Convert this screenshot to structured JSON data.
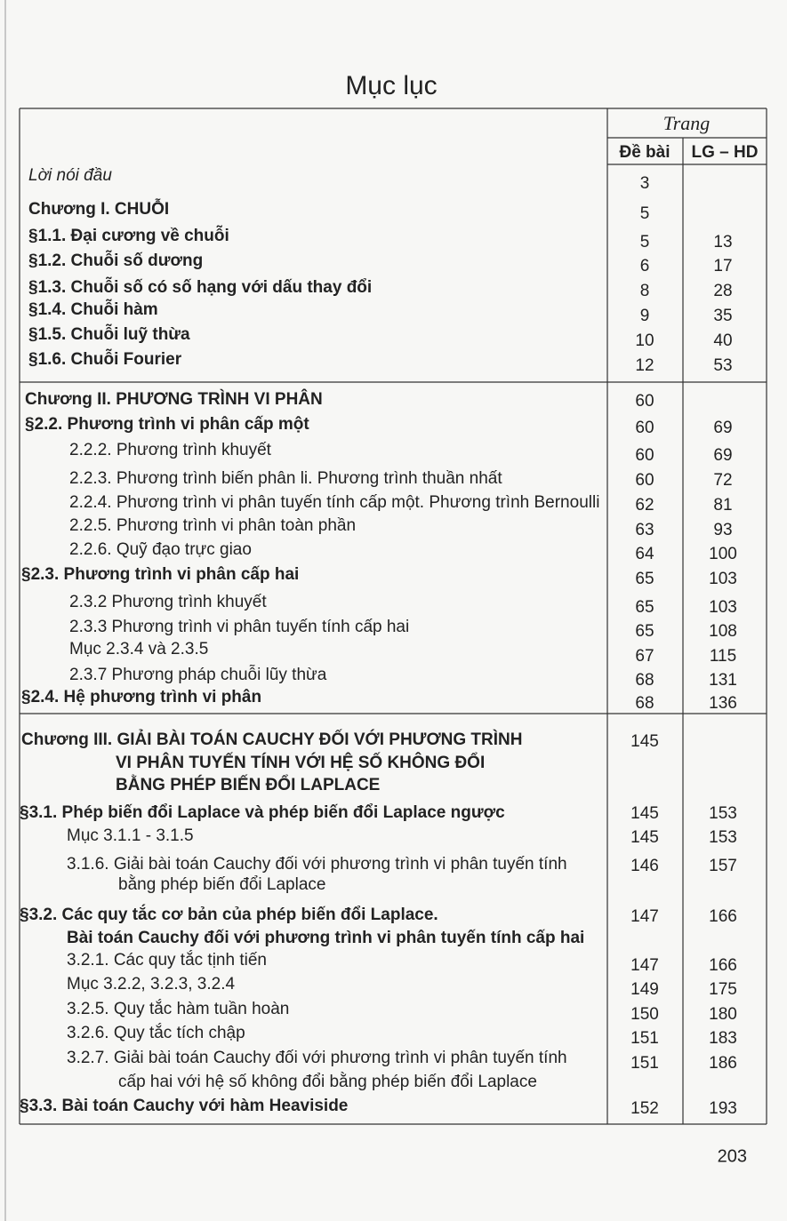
{
  "title": "Mục lục",
  "header": {
    "page": "Trang",
    "exercise": "Đề bài",
    "solution": "LG – HD"
  },
  "sections": [
    {
      "entries": [
        {
          "lines": [
            "Lời nói đầu"
          ],
          "exercise": "3"
        },
        {
          "lines": [
            "Chương I. CHUỖI"
          ],
          "exercise": "5"
        },
        {
          "lines": [
            "§1.1. Đại cương về chuỗi"
          ],
          "exercise": "5",
          "solution": "13"
        },
        {
          "lines": [
            "§1.2. Chuỗi số dương"
          ],
          "exercise": "6",
          "solution": "17"
        },
        {
          "lines": [
            "§1.3. Chuỗi số có số hạng với dấu thay đổi"
          ],
          "exercise": "8",
          "solution": "28"
        },
        {
          "lines": [
            "§1.4. Chuỗi hàm"
          ],
          "exercise": "9",
          "solution": "35"
        },
        {
          "lines": [
            "§1.5. Chuỗi luỹ thừa"
          ],
          "exercise": "10",
          "solution": "40"
        },
        {
          "lines": [
            "§1.6. Chuỗi Fourier"
          ],
          "exercise": "12",
          "solution": "53"
        }
      ]
    },
    {
      "entries": [
        {
          "lines": [
            "Chương II. PHƯƠNG TRÌNH VI PHÂN"
          ],
          "exercise": "60"
        },
        {
          "lines": [
            "§2.2. Phương trình vi phân cấp một"
          ],
          "exercise": "60",
          "solution": "69"
        },
        {
          "lines": [
            "2.2.2. Phương trình khuyết"
          ],
          "exercise": "60",
          "solution": "69"
        },
        {
          "lines": [
            "2.2.3. Phương trình biến phân li. Phương trình thuần nhất"
          ],
          "exercise": "60",
          "solution": "72"
        },
        {
          "lines": [
            "2.2.4. Phương trình vi phân tuyến tính cấp một. Phương trình Bernoulli"
          ],
          "exercise": "62",
          "solution": "81"
        },
        {
          "lines": [
            "2.2.5. Phương trình vi phân toàn phần"
          ],
          "exercise": "63",
          "solution": "93"
        },
        {
          "lines": [
            "2.2.6. Quỹ đạo trực giao"
          ],
          "exercise": "64",
          "solution": "100"
        },
        {
          "lines": [
            "§2.3. Phương trình vi phân cấp hai"
          ],
          "exercise": "65",
          "solution": "103"
        },
        {
          "lines": [
            "2.3.2 Phương trình khuyết"
          ],
          "exercise": "65",
          "solution": "103"
        },
        {
          "lines": [
            "2.3.3 Phương trình vi phân tuyến tính cấp hai"
          ],
          "exercise": "65",
          "solution": "108"
        },
        {
          "lines": [
            "Mục 2.3.4 và 2.3.5"
          ],
          "exercise": "67",
          "solution": "115"
        },
        {
          "lines": [
            "2.3.7 Phương pháp chuỗi lũy thừa"
          ],
          "exercise": "68",
          "solution": "131"
        },
        {
          "lines": [
            "§2.4. Hệ phương trình vi phân"
          ],
          "exercise": "68",
          "solution": "136"
        }
      ]
    },
    {
      "entries": [
        {
          "lines": [
            "Chương III. GIẢI BÀI TOÁN CAUCHY ĐỐI VỚI PHƯƠNG TRÌNH",
            "VI PHÂN TUYẾN TÍNH VỚI HỆ SỐ KHÔNG ĐỔI",
            "BẰNG PHÉP BIẾN ĐỔI LAPLACE"
          ],
          "exercise": "145"
        },
        {
          "lines": [
            "§3.1. Phép biến đổi Laplace và phép biến đổi Laplace ngược"
          ],
          "exercise": "145",
          "solution": "153"
        },
        {
          "lines": [
            "Mục 3.1.1 - 3.1.5"
          ],
          "exercise": "145",
          "solution": "153"
        },
        {
          "lines": [
            "3.1.6. Giải bài toán Cauchy đối với phương trình vi phân tuyến tính",
            "bằng phép biến đổi Laplace"
          ],
          "exercise": "146",
          "solution": "157"
        },
        {
          "lines": [
            "§3.2. Các quy tắc cơ bản của phép biến đổi Laplace.",
            "Bài toán Cauchy đối với phương trình vi phân tuyến tính cấp hai"
          ],
          "exercise": "147",
          "solution": "166"
        },
        {
          "lines": [
            "3.2.1. Các quy tắc tịnh tiến"
          ],
          "exercise": "147",
          "solution": "166"
        },
        {
          "lines": [
            "Mục 3.2.2, 3.2.3, 3.2.4"
          ],
          "exercise": "149",
          "solution": "175"
        },
        {
          "lines": [
            "3.2.5. Quy tắc hàm tuần hoàn"
          ],
          "exercise": "150",
          "solution": "180"
        },
        {
          "lines": [
            "3.2.6. Quy tắc tích chập"
          ],
          "exercise": "151",
          "solution": "183"
        },
        {
          "lines": [
            "3.2.7. Giải bài toán Cauchy đối với phương trình vi phân tuyến tính",
            "cấp hai với hệ số không đổi bằng phép biến đổi Laplace"
          ],
          "exercise": "151",
          "solution": "186"
        },
        {
          "lines": [
            "§3.3. Bài toán Cauchy với hàm Heaviside"
          ],
          "exercise": "152",
          "solution": "193"
        }
      ]
    }
  ],
  "page_number": "203"
}
